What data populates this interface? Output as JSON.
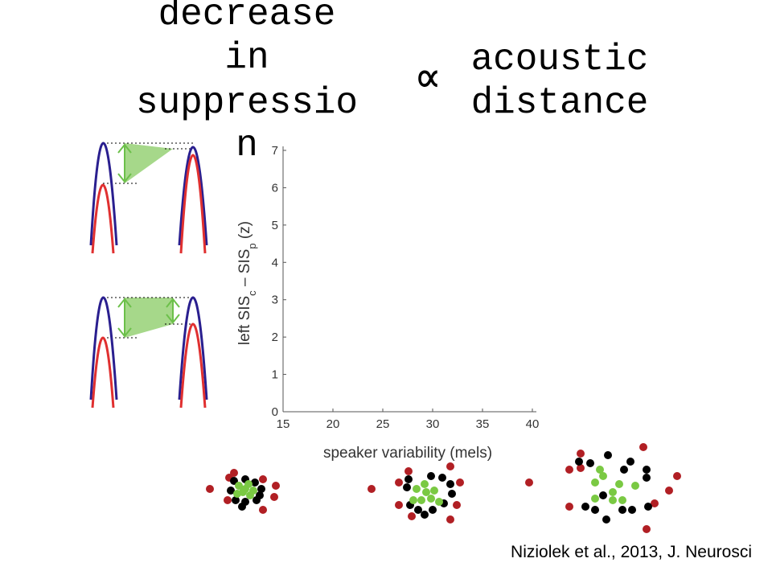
{
  "title_left": [
    "decrease",
    "in",
    "suppressio",
    "n"
  ],
  "proportional": "∝",
  "title_right": [
    "acoustic",
    "distance"
  ],
  "citation": "Niziolek et al., 2013, J. Neurosci",
  "chart_data": {
    "type": "scatter",
    "xlabel": "speaker variability (mels)",
    "ylabel": [
      "left SIS",
      "c",
      " – SIS",
      "p",
      " (z)"
    ],
    "xlim": [
      15,
      40
    ],
    "xticks": [
      15,
      20,
      25,
      30,
      35,
      40
    ],
    "ylim": [
      0,
      7
    ],
    "yticks": [
      0,
      1,
      2,
      3,
      4,
      5,
      6,
      7
    ]
  }
}
